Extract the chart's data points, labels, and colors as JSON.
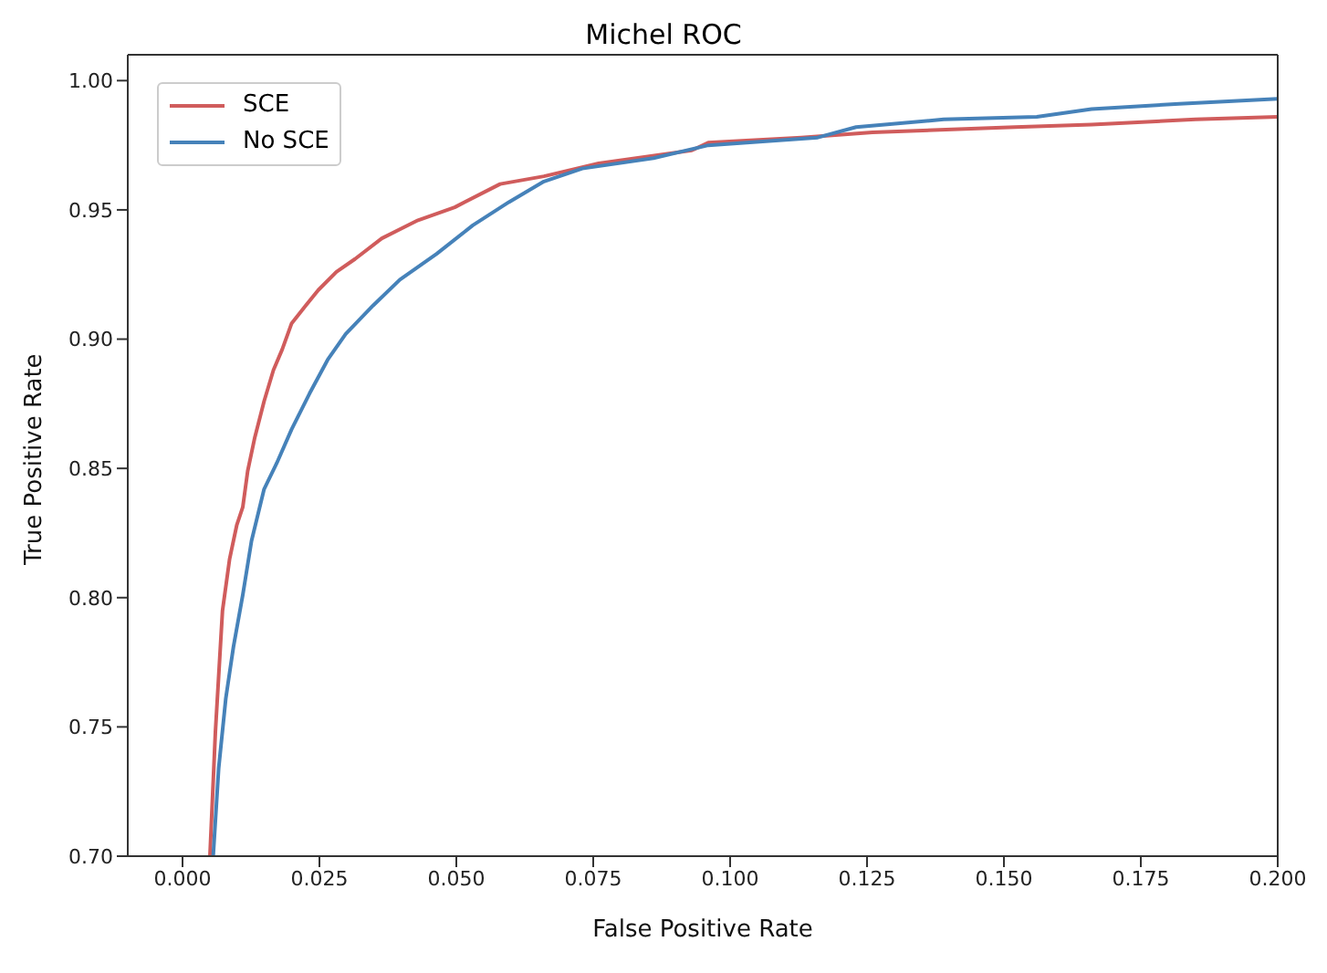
{
  "chart_data": {
    "type": "line",
    "title": "Michel ROC",
    "xlabel": "False Positive Rate",
    "ylabel": "True Positive Rate",
    "xlim": [
      -0.01,
      0.2
    ],
    "xticks": [
      {
        "value": 0,
        "label": "0.000"
      },
      {
        "value": 0.025,
        "label": "0.025"
      },
      {
        "value": 0.05,
        "label": "0.050"
      },
      {
        "value": 0.075,
        "label": "0.075"
      },
      {
        "value": 0.1,
        "label": "0.100"
      },
      {
        "value": 0.125,
        "label": "0.125"
      },
      {
        "value": 0.15,
        "label": "0.150"
      },
      {
        "value": 0.175,
        "label": "0.175"
      },
      {
        "value": 0.2,
        "label": "0.200"
      }
    ],
    "ylim": [
      0.7,
      1.01
    ],
    "yticks": [
      {
        "value": 0.7,
        "label": "0.70"
      },
      {
        "value": 0.75,
        "label": "0.75"
      },
      {
        "value": 0.8,
        "label": "0.80"
      },
      {
        "value": 0.85,
        "label": "0.85"
      },
      {
        "value": 0.9,
        "label": "0.90"
      },
      {
        "value": 0.95,
        "label": "0.95"
      },
      {
        "value": 1,
        "label": "1.00"
      }
    ],
    "grid": false,
    "legend": "top left",
    "marker": "none",
    "line_style": "solid",
    "series": [
      {
        "name": "SCE",
        "color": "#d05c5c",
        "x": [
          0.005,
          0.006,
          0.0073,
          0.0086,
          0.0099,
          0.011,
          0.0119,
          0.0132,
          0.0149,
          0.0166,
          0.0182,
          0.0199,
          0.0225,
          0.0248,
          0.0281,
          0.0315,
          0.0364,
          0.043,
          0.0497,
          0.058,
          0.066,
          0.076,
          0.093,
          0.096,
          0.113,
          0.126,
          0.152,
          0.166,
          0.185,
          0.2
        ],
        "values": [
          0.7,
          0.748,
          0.795,
          0.815,
          0.828,
          0.835,
          0.849,
          0.862,
          0.876,
          0.888,
          0.896,
          0.906,
          0.913,
          0.919,
          0.926,
          0.931,
          0.939,
          0.946,
          0.951,
          0.96,
          0.963,
          0.968,
          0.973,
          0.976,
          0.978,
          0.98,
          0.982,
          0.983,
          0.985,
          0.986
        ]
      },
      {
        "name": "No SCE",
        "color": "#4682b9",
        "x": [
          0.0056,
          0.0066,
          0.0079,
          0.0093,
          0.011,
          0.0126,
          0.0149,
          0.0172,
          0.0199,
          0.0232,
          0.0265,
          0.0298,
          0.0348,
          0.0397,
          0.0464,
          0.053,
          0.0596,
          0.066,
          0.073,
          0.086,
          0.096,
          0.103,
          0.116,
          0.123,
          0.139,
          0.156,
          0.166,
          0.182,
          0.2
        ],
        "values": [
          0.7,
          0.734,
          0.761,
          0.781,
          0.801,
          0.822,
          0.842,
          0.852,
          0.865,
          0.879,
          0.892,
          0.902,
          0.913,
          0.923,
          0.933,
          0.944,
          0.953,
          0.961,
          0.966,
          0.97,
          0.975,
          0.976,
          0.978,
          0.982,
          0.985,
          0.986,
          0.989,
          0.991,
          0.993
        ]
      }
    ]
  }
}
